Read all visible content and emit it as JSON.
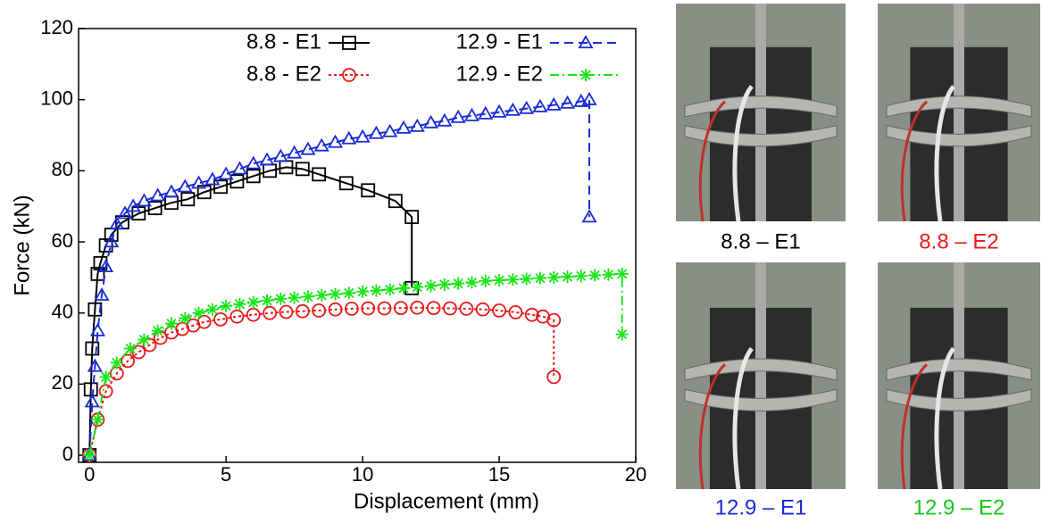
{
  "chart_data": {
    "type": "line",
    "xlabel": "Displacement (mm)",
    "ylabel": "Force (kN)",
    "xlim": [
      -0.4,
      20
    ],
    "ylim": [
      -2,
      120
    ],
    "xticks": [
      0,
      5,
      10,
      15,
      20
    ],
    "yticks": [
      0,
      20,
      40,
      60,
      80,
      100,
      120
    ],
    "grid": false,
    "legend": "top-right",
    "series": [
      {
        "name": "8.8 - E1",
        "color": "#000000",
        "marker": "square",
        "dash": "solid",
        "x": [
          0,
          0.05,
          0.1,
          0.2,
          0.3,
          0.4,
          0.6,
          0.8,
          1.2,
          1.8,
          2.4,
          3,
          3.6,
          4.2,
          4.8,
          5.4,
          6,
          6.6,
          7.2,
          7.8,
          8.4,
          9.4,
          10.2,
          11.2,
          11.8,
          11.8
        ],
        "values": [
          0,
          18.5,
          30,
          41,
          51,
          54,
          59,
          62,
          65.5,
          68,
          69.5,
          71,
          72,
          74,
          75.5,
          77,
          78.5,
          80,
          81,
          80.5,
          79,
          76.5,
          74.5,
          71.5,
          67,
          47
        ]
      },
      {
        "name": "8.8 - E2",
        "color": "#e8191b",
        "marker": "circle",
        "dash": "dotted",
        "x": [
          0,
          0.3,
          0.6,
          1,
          1.4,
          1.8,
          2.2,
          2.6,
          3,
          3.4,
          3.8,
          4.2,
          4.8,
          5.4,
          6,
          6.6,
          7.2,
          7.8,
          8.4,
          9,
          9.6,
          10.2,
          10.8,
          11.4,
          12,
          12.6,
          13.2,
          13.8,
          14.4,
          15,
          15.6,
          16.2,
          16.6,
          17,
          17
        ],
        "values": [
          0,
          10,
          18,
          23,
          26.5,
          29,
          31,
          33,
          34.5,
          35.5,
          36.5,
          37.5,
          38.2,
          39,
          39.5,
          40,
          40.3,
          40.5,
          40.7,
          41,
          41.2,
          41.3,
          41.3,
          41.4,
          41.5,
          41.4,
          41.3,
          41.2,
          41,
          40.7,
          40.2,
          39.5,
          39,
          38,
          22
        ]
      },
      {
        "name": "12.9 - E1",
        "color": "#1a2bd6",
        "marker": "triangle",
        "dash": "dashed",
        "x": [
          0,
          0.1,
          0.2,
          0.3,
          0.45,
          0.6,
          0.8,
          1,
          1.3,
          1.6,
          2,
          2.5,
          3,
          3.5,
          4,
          4.5,
          5,
          5.5,
          6,
          6.5,
          7,
          7.5,
          8,
          8.5,
          9,
          9.5,
          10,
          10.5,
          11,
          11.5,
          12,
          12.5,
          13,
          13.5,
          14,
          14.5,
          15,
          15.5,
          16,
          16.5,
          17,
          17.5,
          18,
          18.3,
          18.3
        ],
        "values": [
          0,
          15,
          25,
          35,
          45,
          53,
          60,
          65,
          68,
          70,
          71.5,
          73,
          74,
          75.5,
          76.5,
          77.5,
          79,
          80.5,
          82,
          83,
          84,
          85,
          86,
          87,
          88,
          89,
          89.5,
          90.5,
          91,
          92,
          92.5,
          93.5,
          94,
          95,
          95.5,
          96,
          96.5,
          97,
          97.5,
          98,
          98.5,
          99,
          99.5,
          100,
          67
        ]
      },
      {
        "name": "12.9 - E2",
        "color": "#19e619",
        "marker": "star",
        "dash": "dashdot",
        "x": [
          0,
          0.3,
          0.6,
          1,
          1.5,
          2,
          2.5,
          3,
          3.5,
          4,
          4.5,
          5,
          5.5,
          6,
          6.5,
          7,
          7.5,
          8,
          8.5,
          9,
          9.5,
          10,
          10.5,
          11,
          11.5,
          12,
          12.5,
          13,
          13.5,
          14,
          14.5,
          15,
          15.5,
          16,
          16.5,
          17,
          17.5,
          18,
          18.5,
          19,
          19.5,
          19.5
        ],
        "values": [
          0,
          10,
          22,
          26,
          30,
          32.5,
          35,
          37,
          38.5,
          40,
          41,
          42,
          42.5,
          43,
          43.5,
          44,
          44.3,
          44.6,
          45,
          45.3,
          45.6,
          46,
          46.3,
          46.6,
          47,
          47.3,
          47.6,
          48,
          48.3,
          48.6,
          49,
          49.2,
          49.4,
          49.6,
          49.8,
          50,
          50.2,
          50.4,
          50.6,
          50.8,
          51,
          34
        ]
      }
    ]
  },
  "photos": [
    {
      "caption": "8.8 – E1",
      "color": "#000000"
    },
    {
      "caption": "8.8 – E2",
      "color": "#e8191b"
    },
    {
      "caption": "12.9 – E1",
      "color": "#1a2bd6"
    },
    {
      "caption": "12.9 – E2",
      "color": "#19c619"
    }
  ]
}
